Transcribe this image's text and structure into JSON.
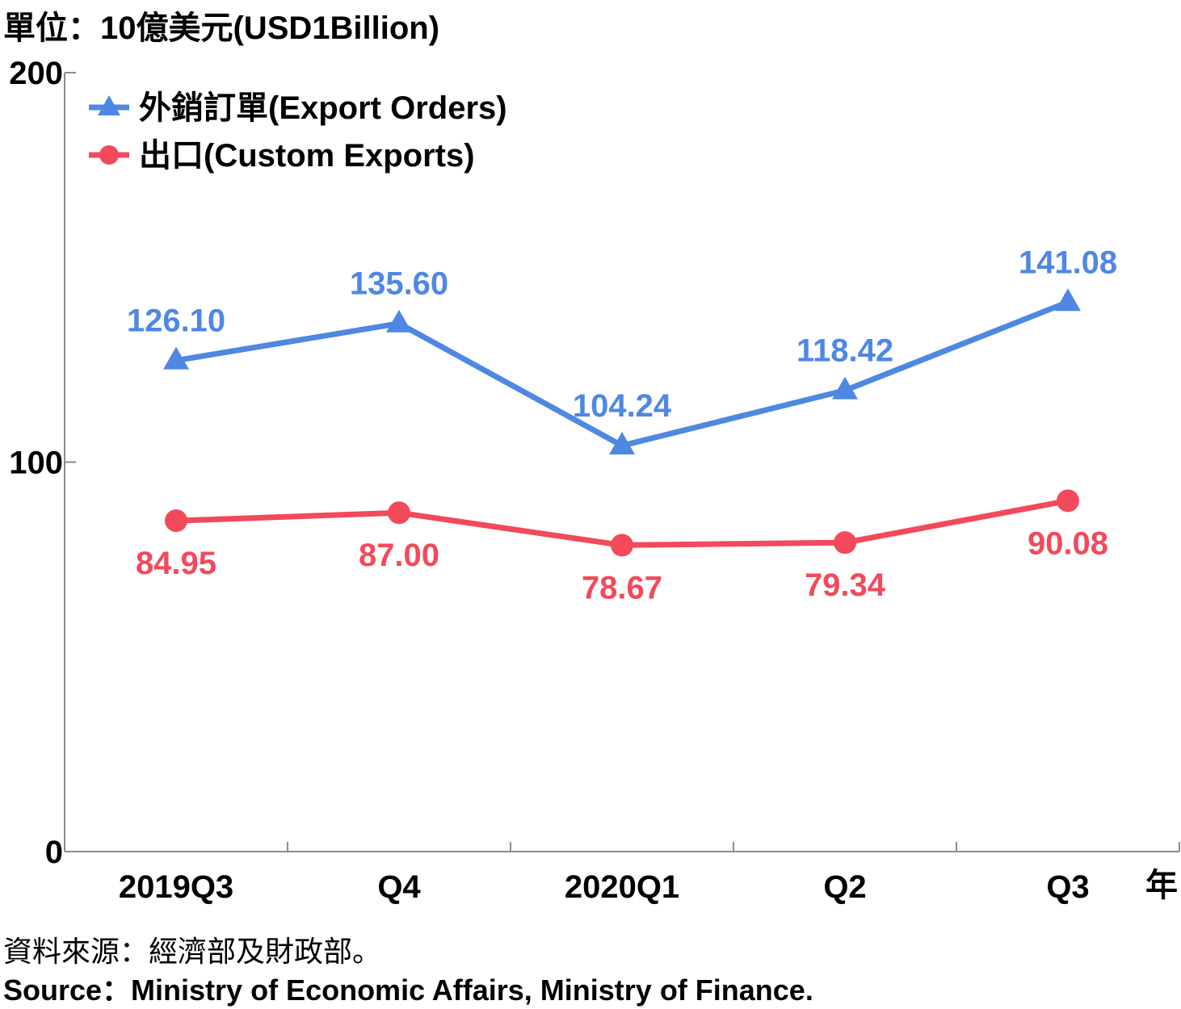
{
  "unit_label": "單位：10億美元(USD1Billion)",
  "x_unit": "年",
  "source_zh": "資料來源：經濟部及財政部。",
  "source_en": "Source：Ministry of Economic Affairs, Ministry of Finance.",
  "chart_data": {
    "type": "line",
    "categories": [
      "2019Q3",
      "Q4",
      "2020Q1",
      "Q2",
      "Q3"
    ],
    "y_ticks": [
      0,
      100,
      200
    ],
    "ylim": [
      0,
      200
    ],
    "grid": false,
    "legend_position": "top-left",
    "series": [
      {
        "name": "外銷訂單(Export Orders)",
        "marker": "triangle",
        "color": "#4f88e3",
        "values": [
          126.1,
          135.6,
          104.24,
          118.42,
          141.08
        ],
        "labels": [
          "126.10",
          "135.60",
          "104.24",
          "118.42",
          "141.08"
        ]
      },
      {
        "name": "出口(Custom Exports)",
        "marker": "circle",
        "color": "#f24a5b",
        "values": [
          84.95,
          87.0,
          78.67,
          79.34,
          90.08
        ],
        "labels": [
          "84.95",
          "87.00",
          "78.67",
          "79.34",
          "90.08"
        ]
      }
    ]
  }
}
